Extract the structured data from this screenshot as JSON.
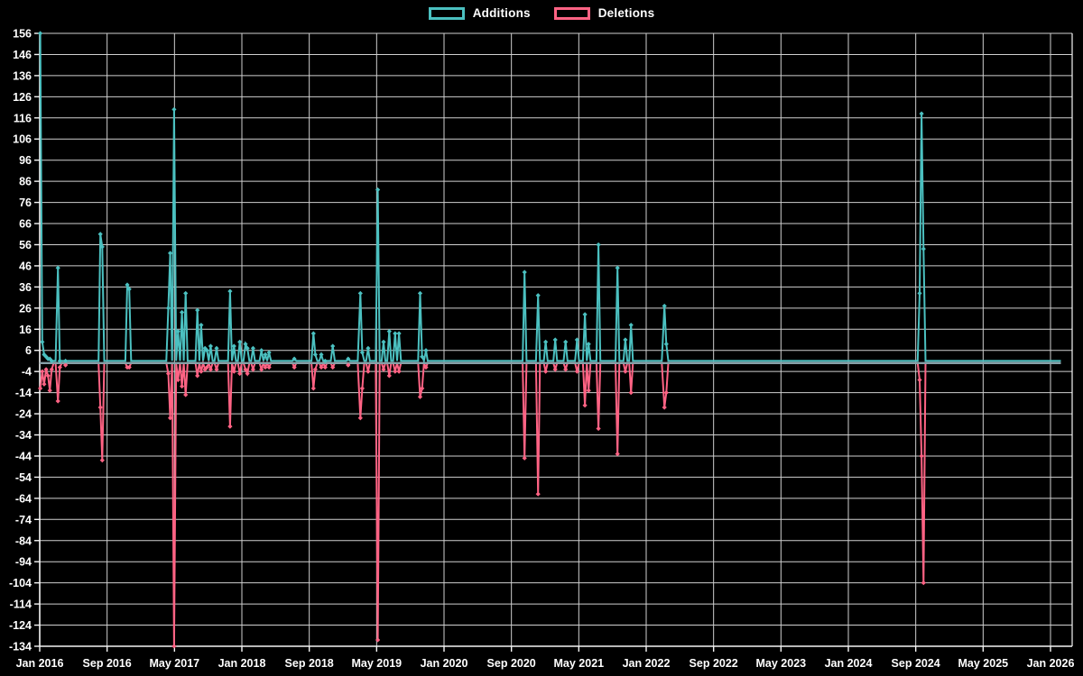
{
  "legend": {
    "items": [
      {
        "label": "Additions",
        "color": "#4bc0c0"
      },
      {
        "label": "Deletions",
        "color": "#ff6384"
      }
    ]
  },
  "chart_data": {
    "type": "line",
    "title": "",
    "description_visible": "Weekly code additions (teal, positive) and deletions (pink, negative) from Jan 2016 to Jan 2026",
    "colors": {
      "background": "#000000",
      "additions": "#4bc0c0",
      "deletions": "#ff6384",
      "grid": "#cfcfcf",
      "axis": "#f5f5f5",
      "zero_line": "#87a0a7",
      "text": "#ffffff"
    },
    "x_axis": {
      "months_per_tick": 8,
      "tick_labels": [
        "Jan 2016",
        "Sep 2016",
        "May 2017",
        "Jan 2018",
        "Sep 2018",
        "May 2019",
        "Jan 2020",
        "Sep 2020",
        "May 2021",
        "Jan 2022",
        "Sep 2022",
        "May 2023",
        "Jan 2024",
        "Sep 2024",
        "May 2025",
        "Jan 2026"
      ]
    },
    "y_axis": {
      "max": 156,
      "min": -134,
      "step": 10,
      "tick_labels": [
        "156",
        "146",
        "136",
        "126",
        "116",
        "106",
        "96",
        "86",
        "76",
        "66",
        "56",
        "46",
        "36",
        "26",
        "16",
        "6",
        "-4",
        "-14",
        "-24",
        "-34",
        "-44",
        "-54",
        "-64",
        "-74",
        "-84",
        "-94",
        "-104",
        "-114",
        "-124",
        "-134"
      ]
    },
    "baseline": {
      "additions": 1,
      "deletions": 0
    },
    "series_range": {
      "first_week": "2016-01-03",
      "last_week": "2026-02-08"
    },
    "legend_position": "top",
    "grid": true,
    "weekly_events": [
      {
        "date": "2016-01-03",
        "additions": 156,
        "deletions": -12
      },
      {
        "date": "2016-01-10",
        "additions": 10,
        "deletions": -4
      },
      {
        "date": "2016-01-17",
        "additions": 4,
        "deletions": -10
      },
      {
        "date": "2016-01-24",
        "additions": 3,
        "deletions": -3
      },
      {
        "date": "2016-01-31",
        "additions": 2,
        "deletions": -6
      },
      {
        "date": "2016-02-07",
        "additions": 2,
        "deletions": -13
      },
      {
        "date": "2016-02-14",
        "additions": 1,
        "deletions": -3
      },
      {
        "date": "2016-03-06",
        "additions": 45,
        "deletions": -18
      },
      {
        "date": "2016-03-13",
        "additions": 1,
        "deletions": -2
      },
      {
        "date": "2016-04-03",
        "additions": 1,
        "deletions": -1
      },
      {
        "date": "2016-08-07",
        "additions": 61,
        "deletions": -21
      },
      {
        "date": "2016-08-14",
        "additions": 55,
        "deletions": -46
      },
      {
        "date": "2016-11-13",
        "additions": 37,
        "deletions": -2
      },
      {
        "date": "2016-11-20",
        "additions": 35,
        "deletions": -2
      },
      {
        "date": "2017-04-09",
        "additions": 26,
        "deletions": -5
      },
      {
        "date": "2017-04-16",
        "additions": 52,
        "deletions": -26
      },
      {
        "date": "2017-04-30",
        "additions": 120,
        "deletions": -134
      },
      {
        "date": "2017-05-14",
        "additions": 15,
        "deletions": -8
      },
      {
        "date": "2017-05-28",
        "additions": 24,
        "deletions": -11
      },
      {
        "date": "2017-06-11",
        "additions": 33,
        "deletions": -15
      },
      {
        "date": "2017-07-23",
        "additions": 25,
        "deletions": -6
      },
      {
        "date": "2017-08-06",
        "additions": 18,
        "deletions": -4
      },
      {
        "date": "2017-08-20",
        "additions": 7,
        "deletions": -3
      },
      {
        "date": "2017-08-27",
        "additions": 6,
        "deletions": -2
      },
      {
        "date": "2017-09-10",
        "additions": 8,
        "deletions": -3
      },
      {
        "date": "2017-10-01",
        "additions": 7,
        "deletions": -3
      },
      {
        "date": "2017-11-19",
        "additions": 34,
        "deletions": -30
      },
      {
        "date": "2017-12-03",
        "additions": 8,
        "deletions": -4
      },
      {
        "date": "2017-12-24",
        "additions": 10,
        "deletions": -5
      },
      {
        "date": "2018-01-14",
        "additions": 9,
        "deletions": -3
      },
      {
        "date": "2018-01-21",
        "additions": 7,
        "deletions": -5
      },
      {
        "date": "2018-02-11",
        "additions": 7,
        "deletions": -3
      },
      {
        "date": "2018-03-11",
        "additions": 6,
        "deletions": -3
      },
      {
        "date": "2018-03-25",
        "additions": 4,
        "deletions": -2
      },
      {
        "date": "2018-04-08",
        "additions": 5,
        "deletions": -2
      },
      {
        "date": "2018-07-08",
        "additions": 2,
        "deletions": -2
      },
      {
        "date": "2018-09-16",
        "additions": 14,
        "deletions": -12
      },
      {
        "date": "2018-09-23",
        "additions": 4,
        "deletions": -3
      },
      {
        "date": "2018-10-14",
        "additions": 4,
        "deletions": -2
      },
      {
        "date": "2018-10-28",
        "additions": 1,
        "deletions": -2
      },
      {
        "date": "2018-11-25",
        "additions": 8,
        "deletions": -2
      },
      {
        "date": "2019-01-20",
        "additions": 2,
        "deletions": -1
      },
      {
        "date": "2019-03-03",
        "additions": 33,
        "deletions": -26
      },
      {
        "date": "2019-03-10",
        "additions": 5,
        "deletions": -12
      },
      {
        "date": "2019-03-31",
        "additions": 7,
        "deletions": -4
      },
      {
        "date": "2019-05-05",
        "additions": 82,
        "deletions": -131
      },
      {
        "date": "2019-05-26",
        "additions": 10,
        "deletions": -3
      },
      {
        "date": "2019-06-16",
        "additions": 15,
        "deletions": -6
      },
      {
        "date": "2019-07-07",
        "additions": 14,
        "deletions": -4
      },
      {
        "date": "2019-07-21",
        "additions": 14,
        "deletions": -4
      },
      {
        "date": "2019-10-06",
        "additions": 33,
        "deletions": -16
      },
      {
        "date": "2019-10-13",
        "additions": 3,
        "deletions": -12
      },
      {
        "date": "2019-10-27",
        "additions": 6,
        "deletions": -2
      },
      {
        "date": "2020-10-18",
        "additions": 43,
        "deletions": -45
      },
      {
        "date": "2020-12-06",
        "additions": 32,
        "deletions": -62
      },
      {
        "date": "2021-01-03",
        "additions": 10,
        "deletions": -4
      },
      {
        "date": "2021-02-07",
        "additions": 11,
        "deletions": -3
      },
      {
        "date": "2021-03-14",
        "additions": 10,
        "deletions": -3
      },
      {
        "date": "2021-04-25",
        "additions": 11,
        "deletions": -4
      },
      {
        "date": "2021-05-23",
        "additions": 23,
        "deletions": -20
      },
      {
        "date": "2021-06-06",
        "additions": 9,
        "deletions": -13
      },
      {
        "date": "2021-07-11",
        "additions": 56,
        "deletions": -31
      },
      {
        "date": "2021-09-19",
        "additions": 45,
        "deletions": -43
      },
      {
        "date": "2021-10-17",
        "additions": 11,
        "deletions": -4
      },
      {
        "date": "2021-11-07",
        "additions": 18,
        "deletions": -14
      },
      {
        "date": "2022-03-06",
        "additions": 27,
        "deletions": -21
      },
      {
        "date": "2022-03-13",
        "additions": 9,
        "deletions": -14
      },
      {
        "date": "2024-09-15",
        "additions": 33,
        "deletions": -8
      },
      {
        "date": "2024-09-22",
        "additions": 118,
        "deletions": -44
      },
      {
        "date": "2024-09-29",
        "additions": 54,
        "deletions": -104
      }
    ],
    "series": [
      {
        "name": "Additions",
        "color": "#4bc0c0"
      },
      {
        "name": "Deletions",
        "color": "#ff6384"
      }
    ]
  }
}
